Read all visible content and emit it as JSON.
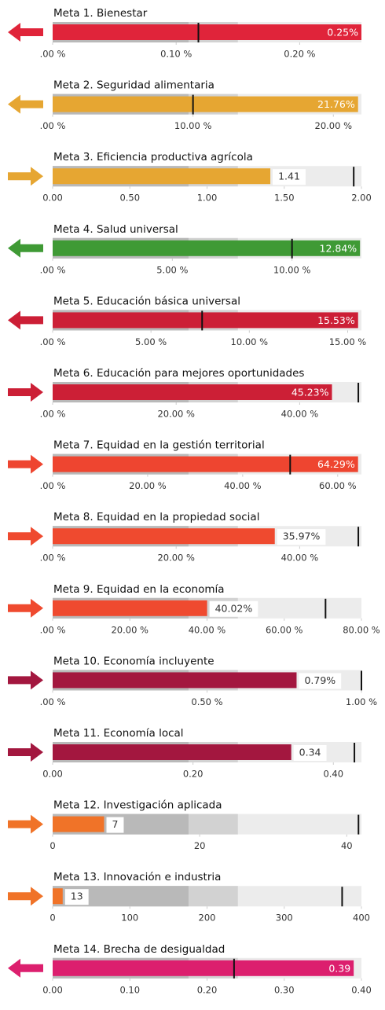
{
  "chart_data": [
    {
      "type": "bullet",
      "title": "Meta 1. Bienestar",
      "value": 0.25,
      "value_label": "0.25%",
      "target": 0.118,
      "xlim": [
        0,
        0.25
      ],
      "xticks": [
        {
          "value": 0,
          "label": ".00 %"
        },
        {
          "value": 0.1,
          "label": "0.10 %"
        },
        {
          "value": 0.2,
          "label": "0.20 %"
        }
      ],
      "color": "#e0243a",
      "arrow": "left",
      "label_inside": true
    },
    {
      "type": "bullet",
      "title": "Meta 2. Seguridad alimentaria",
      "value": 21.76,
      "value_label": "21.76%",
      "target": 10,
      "xlim": [
        0,
        22
      ],
      "xticks": [
        {
          "value": 0,
          "label": ".00 %"
        },
        {
          "value": 10,
          "label": "10.00 %"
        },
        {
          "value": 20,
          "label": "20.00 %"
        }
      ],
      "color": "#e6a632",
      "arrow": "left",
      "label_inside": true
    },
    {
      "type": "bullet",
      "title": "Meta 3. Eficiencia productiva agrícola",
      "value": 1.41,
      "target": 1.95,
      "xlim": [
        0,
        2
      ],
      "xticks": [
        {
          "value": 0,
          "label": "0.00"
        },
        {
          "value": 0.5,
          "label": "0.50"
        },
        {
          "value": 1,
          "label": "1.00"
        },
        {
          "value": 1.5,
          "label": "1.50"
        },
        {
          "value": 2,
          "label": "2.00"
        }
      ],
      "color": "#e6a632",
      "arrow": "right",
      "label_inside": false
    },
    {
      "type": "bullet",
      "title": "Meta 4. Salud universal",
      "value": 12.84,
      "value_label": "12.84%",
      "target": 10,
      "xlim": [
        0,
        12.9
      ],
      "xticks": [
        {
          "value": 0,
          "label": ".00 %"
        },
        {
          "value": 5,
          "label": "5.00 %"
        },
        {
          "value": 10,
          "label": "10.00 %"
        }
      ],
      "color": "#3f9a35",
      "arrow": "left",
      "label_inside": true
    },
    {
      "type": "bullet",
      "title": "Meta 5. Educación básica universal",
      "value": 15.53,
      "value_label": "15.53%",
      "target": 7.6,
      "xlim": [
        0,
        15.7
      ],
      "xticks": [
        {
          "value": 0,
          "label": ".00 %"
        },
        {
          "value": 5,
          "label": "5.00 %"
        },
        {
          "value": 10,
          "label": "10.00 %"
        },
        {
          "value": 15,
          "label": "15.00 %"
        }
      ],
      "color": "#cc1f36",
      "arrow": "left",
      "label_inside": true
    },
    {
      "type": "bullet",
      "title": "Meta 6. Educación para mejores oportunidades",
      "value": 45.23,
      "value_label": "45.23%",
      "target": 49.5,
      "xlim": [
        0,
        50
      ],
      "xticks": [
        {
          "value": 0,
          "label": ".00 %"
        },
        {
          "value": 20,
          "label": "20.00 %"
        },
        {
          "value": 40,
          "label": "40.00 %"
        }
      ],
      "color": "#cc1f36",
      "arrow": "right",
      "label_inside": true
    },
    {
      "type": "bullet",
      "title": "Meta 7. Equidad en la gestión territorial",
      "value": 64.29,
      "value_label": "64.29%",
      "target": 50,
      "xlim": [
        0,
        65
      ],
      "xticks": [
        {
          "value": 0,
          "label": ".00 %"
        },
        {
          "value": 20,
          "label": "20.00 %"
        },
        {
          "value": 40,
          "label": "40.00 %"
        },
        {
          "value": 60,
          "label": "60.00 %"
        }
      ],
      "color": "#ee4530",
      "arrow": "right",
      "label_inside": true
    },
    {
      "type": "bullet",
      "title": "Meta 8. Equidad en la propiedad social",
      "value": 35.97,
      "value_label": "35.97%",
      "target": 49.5,
      "xlim": [
        0,
        50
      ],
      "xticks": [
        {
          "value": 0,
          "label": ".00 %"
        },
        {
          "value": 20,
          "label": "20.00 %"
        },
        {
          "value": 40,
          "label": "40.00 %"
        }
      ],
      "color": "#ef4a2f",
      "arrow": "right",
      "label_inside": false
    },
    {
      "type": "bullet",
      "title": "Meta 9. Equidad en la economía",
      "value": 40.02,
      "value_label": "40.02%",
      "target": 70.7,
      "xlim": [
        0,
        80
      ],
      "xticks": [
        {
          "value": 0,
          "label": ".00 %"
        },
        {
          "value": 20,
          "label": "20.00 %"
        },
        {
          "value": 40,
          "label": "40.00 %"
        },
        {
          "value": 60,
          "label": "60.00 %"
        },
        {
          "value": 80,
          "label": "80.00 %"
        }
      ],
      "color": "#ef4a2f",
      "arrow": "right",
      "label_inside": false
    },
    {
      "type": "bullet",
      "title": "Meta 10. Economía incluyente",
      "value": 0.79,
      "value_label": "0.79%",
      "target": 1,
      "xlim": [
        0,
        1
      ],
      "xticks": [
        {
          "value": 0,
          "label": ".00 %"
        },
        {
          "value": 0.5,
          "label": "0.50 %"
        },
        {
          "value": 1,
          "label": "1.00 %"
        }
      ],
      "color": "#a3173f",
      "arrow": "right",
      "label_inside": false
    },
    {
      "type": "bullet",
      "title": "Meta 11. Economía local",
      "value": 0.34,
      "target": 0.43,
      "xlim": [
        0,
        0.44
      ],
      "xticks": [
        {
          "value": 0,
          "label": "0.00"
        },
        {
          "value": 0.2,
          "label": "0.20"
        },
        {
          "value": 0.4,
          "label": "0.40"
        }
      ],
      "color": "#a3173f",
      "arrow": "right",
      "label_inside": false
    },
    {
      "type": "bullet",
      "title": "Meta 12. Investigación aplicada",
      "value": 7,
      "target": 41.6,
      "xlim": [
        0,
        42
      ],
      "xticks": [
        0,
        20,
        40
      ],
      "color": "#f07328",
      "arrow": "right",
      "label_inside": false
    },
    {
      "type": "bullet",
      "title": "Meta 13.  Innovación e industria",
      "value": 13,
      "target": 375,
      "xlim": [
        0,
        400
      ],
      "xticks": [
        0,
        100,
        200,
        300,
        400
      ],
      "color": "#f07328",
      "arrow": "right",
      "label_inside": false
    },
    {
      "type": "bullet",
      "title": "Meta 14. Brecha de desigualdad",
      "value": 0.39,
      "target": 0.235,
      "xlim": [
        0,
        0.4
      ],
      "xticks": [
        {
          "value": 0,
          "label": "0.00"
        },
        {
          "value": 0.1,
          "label": "0.10"
        },
        {
          "value": 0.2,
          "label": "0.20"
        },
        {
          "value": 0.3,
          "label": "0.30"
        },
        {
          "value": 0.4,
          "label": "0.40"
        }
      ],
      "color": "#dc1f6e",
      "arrow": "left",
      "label_inside": true
    }
  ]
}
